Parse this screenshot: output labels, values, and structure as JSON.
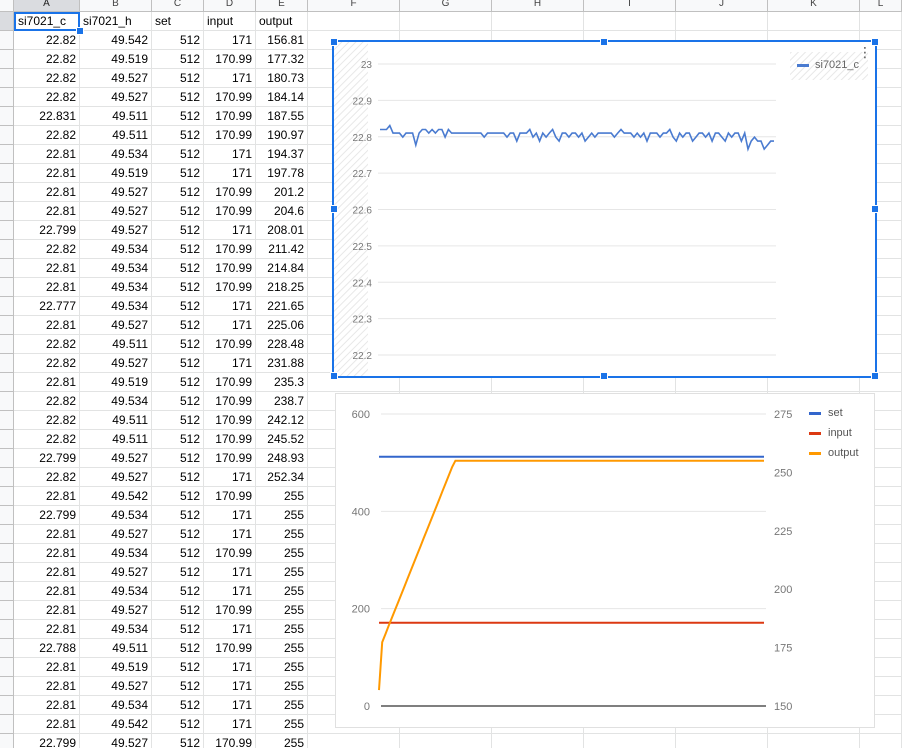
{
  "columns": [
    "A",
    "B",
    "C",
    "D",
    "E",
    "F",
    "G",
    "H",
    "I",
    "J",
    "K",
    "L"
  ],
  "headers": [
    "si7021_c",
    "si7021_h",
    "set",
    "input",
    "output"
  ],
  "rows": [
    [
      "22.82",
      "49.542",
      "512",
      "171",
      "156.81"
    ],
    [
      "22.82",
      "49.519",
      "512",
      "170.99",
      "177.32"
    ],
    [
      "22.82",
      "49.527",
      "512",
      "171",
      "180.73"
    ],
    [
      "22.82",
      "49.527",
      "512",
      "170.99",
      "184.14"
    ],
    [
      "22.831",
      "49.511",
      "512",
      "170.99",
      "187.55"
    ],
    [
      "22.82",
      "49.511",
      "512",
      "170.99",
      "190.97"
    ],
    [
      "22.81",
      "49.534",
      "512",
      "171",
      "194.37"
    ],
    [
      "22.81",
      "49.519",
      "512",
      "171",
      "197.78"
    ],
    [
      "22.81",
      "49.527",
      "512",
      "170.99",
      "201.2"
    ],
    [
      "22.81",
      "49.527",
      "512",
      "170.99",
      "204.6"
    ],
    [
      "22.799",
      "49.527",
      "512",
      "171",
      "208.01"
    ],
    [
      "22.82",
      "49.534",
      "512",
      "170.99",
      "211.42"
    ],
    [
      "22.81",
      "49.534",
      "512",
      "170.99",
      "214.84"
    ],
    [
      "22.81",
      "49.534",
      "512",
      "170.99",
      "218.25"
    ],
    [
      "22.777",
      "49.534",
      "512",
      "171",
      "221.65"
    ],
    [
      "22.81",
      "49.527",
      "512",
      "171",
      "225.06"
    ],
    [
      "22.82",
      "49.511",
      "512",
      "170.99",
      "228.48"
    ],
    [
      "22.82",
      "49.527",
      "512",
      "171",
      "231.88"
    ],
    [
      "22.81",
      "49.519",
      "512",
      "170.99",
      "235.3"
    ],
    [
      "22.82",
      "49.534",
      "512",
      "170.99",
      "238.7"
    ],
    [
      "22.82",
      "49.511",
      "512",
      "170.99",
      "242.12"
    ],
    [
      "22.82",
      "49.511",
      "512",
      "170.99",
      "245.52"
    ],
    [
      "22.799",
      "49.527",
      "512",
      "170.99",
      "248.93"
    ],
    [
      "22.82",
      "49.527",
      "512",
      "171",
      "252.34"
    ],
    [
      "22.81",
      "49.542",
      "512",
      "170.99",
      "255"
    ],
    [
      "22.799",
      "49.534",
      "512",
      "171",
      "255"
    ],
    [
      "22.81",
      "49.527",
      "512",
      "171",
      "255"
    ],
    [
      "22.81",
      "49.534",
      "512",
      "170.99",
      "255"
    ],
    [
      "22.81",
      "49.527",
      "512",
      "171",
      "255"
    ],
    [
      "22.81",
      "49.534",
      "512",
      "171",
      "255"
    ],
    [
      "22.81",
      "49.527",
      "512",
      "170.99",
      "255"
    ],
    [
      "22.81",
      "49.534",
      "512",
      "171",
      "255"
    ],
    [
      "22.788",
      "49.511",
      "512",
      "170.99",
      "255"
    ],
    [
      "22.81",
      "49.519",
      "512",
      "171",
      "255"
    ],
    [
      "22.81",
      "49.527",
      "512",
      "171",
      "255"
    ],
    [
      "22.81",
      "49.534",
      "512",
      "171",
      "255"
    ],
    [
      "22.81",
      "49.542",
      "512",
      "171",
      "255"
    ],
    [
      "22.799",
      "49.527",
      "512",
      "170.99",
      "255"
    ]
  ],
  "chart_data": [
    {
      "type": "line",
      "ylim": [
        22.2,
        23
      ],
      "yticks": [
        "23",
        "22.9",
        "22.8",
        "22.7",
        "22.6",
        "22.5",
        "22.4",
        "22.3",
        "22.2"
      ],
      "legend_position": "top-right",
      "series": [
        {
          "name": "si7021_c",
          "color": "#4a7bd0",
          "values": [
            22.82,
            22.82,
            22.82,
            22.831,
            22.81,
            22.81,
            22.81,
            22.799,
            22.81,
            22.81,
            22.81,
            22.777,
            22.81,
            22.82,
            22.82,
            22.81,
            22.82,
            22.81,
            22.82,
            22.82,
            22.799,
            22.82,
            22.81,
            22.81,
            22.81,
            22.81,
            22.81,
            22.81,
            22.81,
            22.81,
            22.81,
            22.81,
            22.799,
            22.81,
            22.81,
            22.81,
            22.81,
            22.81,
            22.81,
            22.799,
            22.81,
            22.81,
            22.788,
            22.81,
            22.81,
            22.81,
            22.82,
            22.799,
            22.81,
            22.788,
            22.81,
            22.799,
            22.81,
            22.82,
            22.799,
            22.788,
            22.81,
            22.81,
            22.799,
            22.81,
            22.81,
            22.799,
            22.81,
            22.788,
            22.799,
            22.81,
            22.799,
            22.81,
            22.81,
            22.81,
            22.81,
            22.81,
            22.799,
            22.81,
            22.82,
            22.81,
            22.81,
            22.81,
            22.799,
            22.81,
            22.799,
            22.81,
            22.788,
            22.81,
            22.81,
            22.81,
            22.799,
            22.81,
            22.81,
            22.82,
            22.799,
            22.788,
            22.81,
            22.799,
            22.81,
            22.81,
            22.788,
            22.799,
            22.81,
            22.81,
            22.799,
            22.81,
            22.788,
            22.81,
            22.81,
            22.799,
            22.788,
            22.81,
            22.799,
            22.81,
            22.81,
            22.788,
            22.81,
            22.766,
            22.788,
            22.799,
            22.788,
            22.788,
            22.766,
            22.777,
            22.788,
            22.788
          ]
        }
      ]
    },
    {
      "type": "line",
      "ylim_left": [
        0,
        600
      ],
      "ylim_right": [
        150,
        275
      ],
      "yticks_left": [
        "600",
        "400",
        "200",
        "0"
      ],
      "yticks_right": [
        "275",
        "250",
        "225",
        "200",
        "175",
        "150"
      ],
      "legend_position": "top-right",
      "series": [
        {
          "name": "set",
          "color": "#3366cc",
          "axis": "left",
          "values": [
            512,
            512,
            512,
            512,
            512,
            512,
            512,
            512,
            512,
            512,
            512,
            512,
            512,
            512,
            512,
            512,
            512,
            512,
            512,
            512,
            512,
            512,
            512,
            512,
            512,
            512,
            512,
            512,
            512,
            512,
            512,
            512,
            512,
            512,
            512,
            512,
            512,
            512,
            512,
            512,
            512,
            512,
            512,
            512,
            512,
            512,
            512,
            512,
            512,
            512,
            512,
            512,
            512,
            512,
            512,
            512,
            512,
            512,
            512,
            512,
            512,
            512,
            512,
            512,
            512,
            512,
            512,
            512,
            512,
            512,
            512,
            512,
            512,
            512,
            512,
            512,
            512,
            512,
            512,
            512,
            512,
            512,
            512,
            512,
            512,
            512,
            512,
            512,
            512,
            512,
            512,
            512,
            512,
            512,
            512,
            512,
            512,
            512,
            512,
            512,
            512,
            512,
            512,
            512,
            512,
            512,
            512,
            512,
            512,
            512,
            512,
            512,
            512,
            512,
            512,
            512,
            512,
            512,
            512,
            512,
            512,
            512
          ]
        },
        {
          "name": "input",
          "color": "#dc3912",
          "axis": "left",
          "values": [
            171,
            170.99,
            171,
            170.99,
            170.99,
            170.99,
            171,
            171,
            170.99,
            170.99,
            171,
            170.99,
            170.99,
            170.99,
            171,
            171,
            170.99,
            171,
            170.99,
            170.99,
            170.99,
            170.99,
            170.99,
            171,
            170.99,
            171,
            171,
            170.99,
            171,
            171,
            170.99,
            171,
            170.99,
            171,
            171,
            171,
            171,
            170.99,
            171,
            171,
            171,
            171,
            171,
            171,
            171,
            171,
            171,
            171,
            171,
            171,
            171,
            171,
            171,
            171,
            171,
            171,
            171,
            171,
            171,
            171,
            171,
            171,
            171,
            171,
            171,
            171,
            171,
            171,
            171,
            171,
            171,
            171,
            171,
            171,
            171,
            171,
            171,
            171,
            171,
            171,
            171,
            171,
            171,
            171,
            171,
            171,
            171,
            171,
            171,
            171,
            171,
            171,
            171,
            171,
            171,
            171,
            171,
            171,
            171,
            171,
            171,
            171,
            171,
            171,
            171,
            171,
            171,
            171,
            171,
            171,
            171,
            171,
            171,
            171,
            171,
            171,
            171,
            171,
            171,
            171,
            171,
            171
          ]
        },
        {
          "name": "output",
          "color": "#ff9900",
          "axis": "right",
          "values": [
            156.81,
            177.32,
            180.73,
            184.14,
            187.55,
            190.97,
            194.37,
            197.78,
            201.2,
            204.6,
            208.01,
            211.42,
            214.84,
            218.25,
            221.65,
            225.06,
            228.48,
            231.88,
            235.3,
            238.7,
            242.12,
            245.52,
            248.93,
            252.34,
            255,
            255,
            255,
            255,
            255,
            255,
            255,
            255,
            255,
            255,
            255,
            255,
            255,
            255,
            255,
            255,
            255,
            255,
            255,
            255,
            255,
            255,
            255,
            255,
            255,
            255,
            255,
            255,
            255,
            255,
            255,
            255,
            255,
            255,
            255,
            255,
            255,
            255,
            255,
            255,
            255,
            255,
            255,
            255,
            255,
            255,
            255,
            255,
            255,
            255,
            255,
            255,
            255,
            255,
            255,
            255,
            255,
            255,
            255,
            255,
            255,
            255,
            255,
            255,
            255,
            255,
            255,
            255,
            255,
            255,
            255,
            255,
            255,
            255,
            255,
            255,
            255,
            255,
            255,
            255,
            255,
            255,
            255,
            255,
            255,
            255,
            255,
            255,
            255,
            255,
            255,
            255,
            255,
            255,
            255,
            255,
            255,
            255
          ]
        }
      ]
    }
  ]
}
